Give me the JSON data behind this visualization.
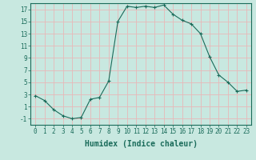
{
  "x": [
    0,
    1,
    2,
    3,
    4,
    5,
    6,
    7,
    8,
    9,
    10,
    11,
    12,
    13,
    14,
    15,
    16,
    17,
    18,
    19,
    20,
    21,
    22,
    23
  ],
  "y": [
    2.8,
    2.0,
    0.5,
    -0.5,
    -1.0,
    -0.8,
    2.2,
    2.5,
    5.2,
    15.0,
    17.5,
    17.3,
    17.5,
    17.3,
    17.7,
    16.2,
    15.2,
    14.6,
    13.0,
    9.2,
    6.2,
    5.0,
    3.5,
    3.7
  ],
  "line_color": "#1a6b5a",
  "marker": "+",
  "marker_size": 3,
  "bg_color": "#c8e8e0",
  "grid_color": "#e8b8b8",
  "xlabel": "Humidex (Indice chaleur)",
  "xlim": [
    -0.5,
    23.5
  ],
  "ylim": [
    -2,
    18
  ],
  "yticks": [
    -1,
    1,
    3,
    5,
    7,
    9,
    11,
    13,
    15,
    17
  ],
  "xticks": [
    0,
    1,
    2,
    3,
    4,
    5,
    6,
    7,
    8,
    9,
    10,
    11,
    12,
    13,
    14,
    15,
    16,
    17,
    18,
    19,
    20,
    21,
    22,
    23
  ],
  "tick_fontsize": 5.5,
  "xlabel_fontsize": 7.0,
  "tick_color": "#1a6b5a"
}
